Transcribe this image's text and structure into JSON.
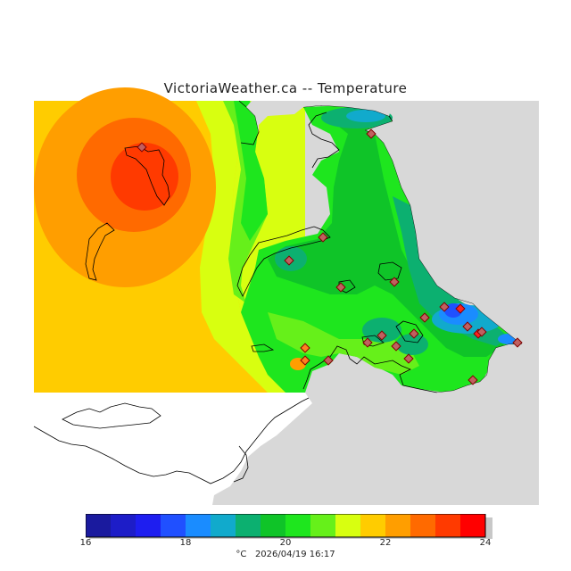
{
  "title": "VictoriaWeather.ca -- Temperature",
  "colorbar": {
    "min": 16,
    "max": 24,
    "ticks": [
      "16",
      "18",
      "20",
      "22",
      "24"
    ],
    "colors": [
      "#1a1a9e",
      "#1d1dc8",
      "#1e1ef0",
      "#2050ff",
      "#1a8cff",
      "#11aacc",
      "#0cb070",
      "#0fc428",
      "#1ee61e",
      "#66f01a",
      "#d8ff10",
      "#ffcc00",
      "#ff9e00",
      "#ff6a00",
      "#ff3a00",
      "#ff0000"
    ]
  },
  "footer": {
    "unit": "°C",
    "timestamp": "2026/04/19 16:17"
  },
  "map": {
    "land_color": "#d8d8d8",
    "nodata_color": "#ffffff",
    "hotspot_max_celsius": 23.5,
    "coldspot_min_celsius": 17.5
  }
}
